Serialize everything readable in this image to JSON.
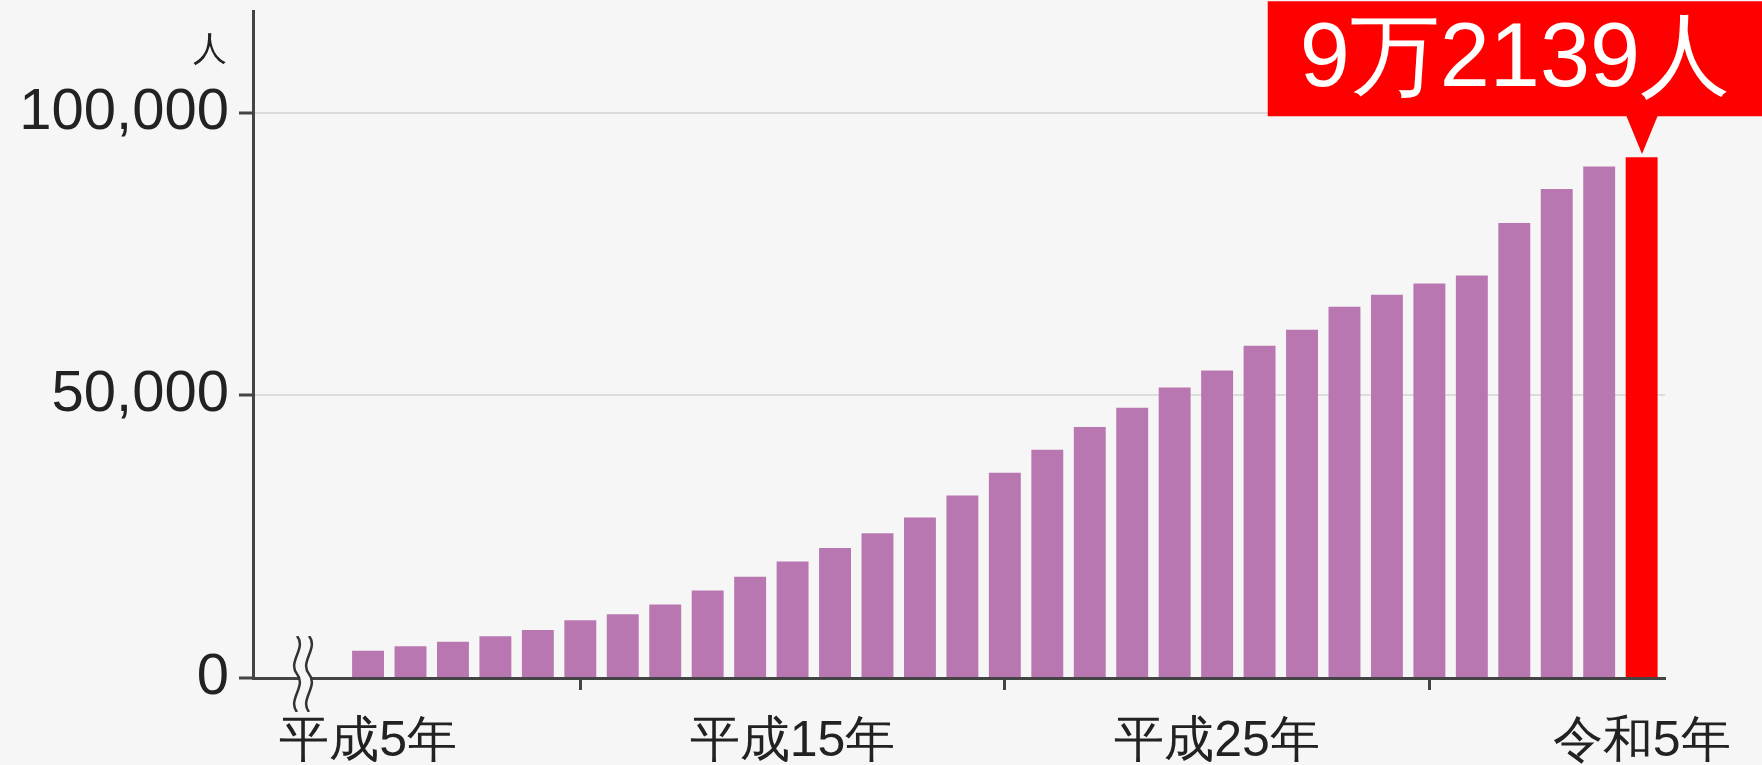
{
  "chart_data": {
    "type": "bar",
    "ylabel": "人",
    "categories": [
      "平成5年",
      null,
      null,
      null,
      null,
      null,
      null,
      null,
      null,
      null,
      "平成15年",
      null,
      null,
      null,
      null,
      null,
      null,
      null,
      null,
      null,
      "平成25年",
      null,
      null,
      null,
      null,
      null,
      null,
      null,
      null,
      null,
      "令和5年"
    ],
    "values": [
      4800,
      5600,
      6400,
      7400,
      8500,
      10200,
      11300,
      13000,
      15500,
      17900,
      20600,
      23000,
      25600,
      28400,
      32300,
      36300,
      40400,
      44400,
      47800,
      51400,
      54400,
      58800,
      61600,
      65700,
      67800,
      69800,
      71200,
      80500,
      86500,
      90500,
      92139
    ],
    "colors": [
      "#b977b1",
      "#b977b1",
      "#b977b1",
      "#b977b1",
      "#b977b1",
      "#b977b1",
      "#b977b1",
      "#b977b1",
      "#b977b1",
      "#b977b1",
      "#b977b1",
      "#b977b1",
      "#b977b1",
      "#b977b1",
      "#b977b1",
      "#b977b1",
      "#b977b1",
      "#b977b1",
      "#b977b1",
      "#b977b1",
      "#b977b1",
      "#b977b1",
      "#b977b1",
      "#b977b1",
      "#b977b1",
      "#b977b1",
      "#b977b1",
      "#b977b1",
      "#b977b1",
      "#b977b1",
      "#ff0000"
    ],
    "annotations": [
      {
        "text": "9万2139人",
        "x": "令和5年",
        "y": 92139
      }
    ],
    "ylim": [
      0,
      118000
    ],
    "yticks": [
      0,
      {
        "value": 50000,
        "label": "50,000"
      },
      {
        "value": 100000,
        "label": "100,000"
      }
    ],
    "grid": "y"
  }
}
